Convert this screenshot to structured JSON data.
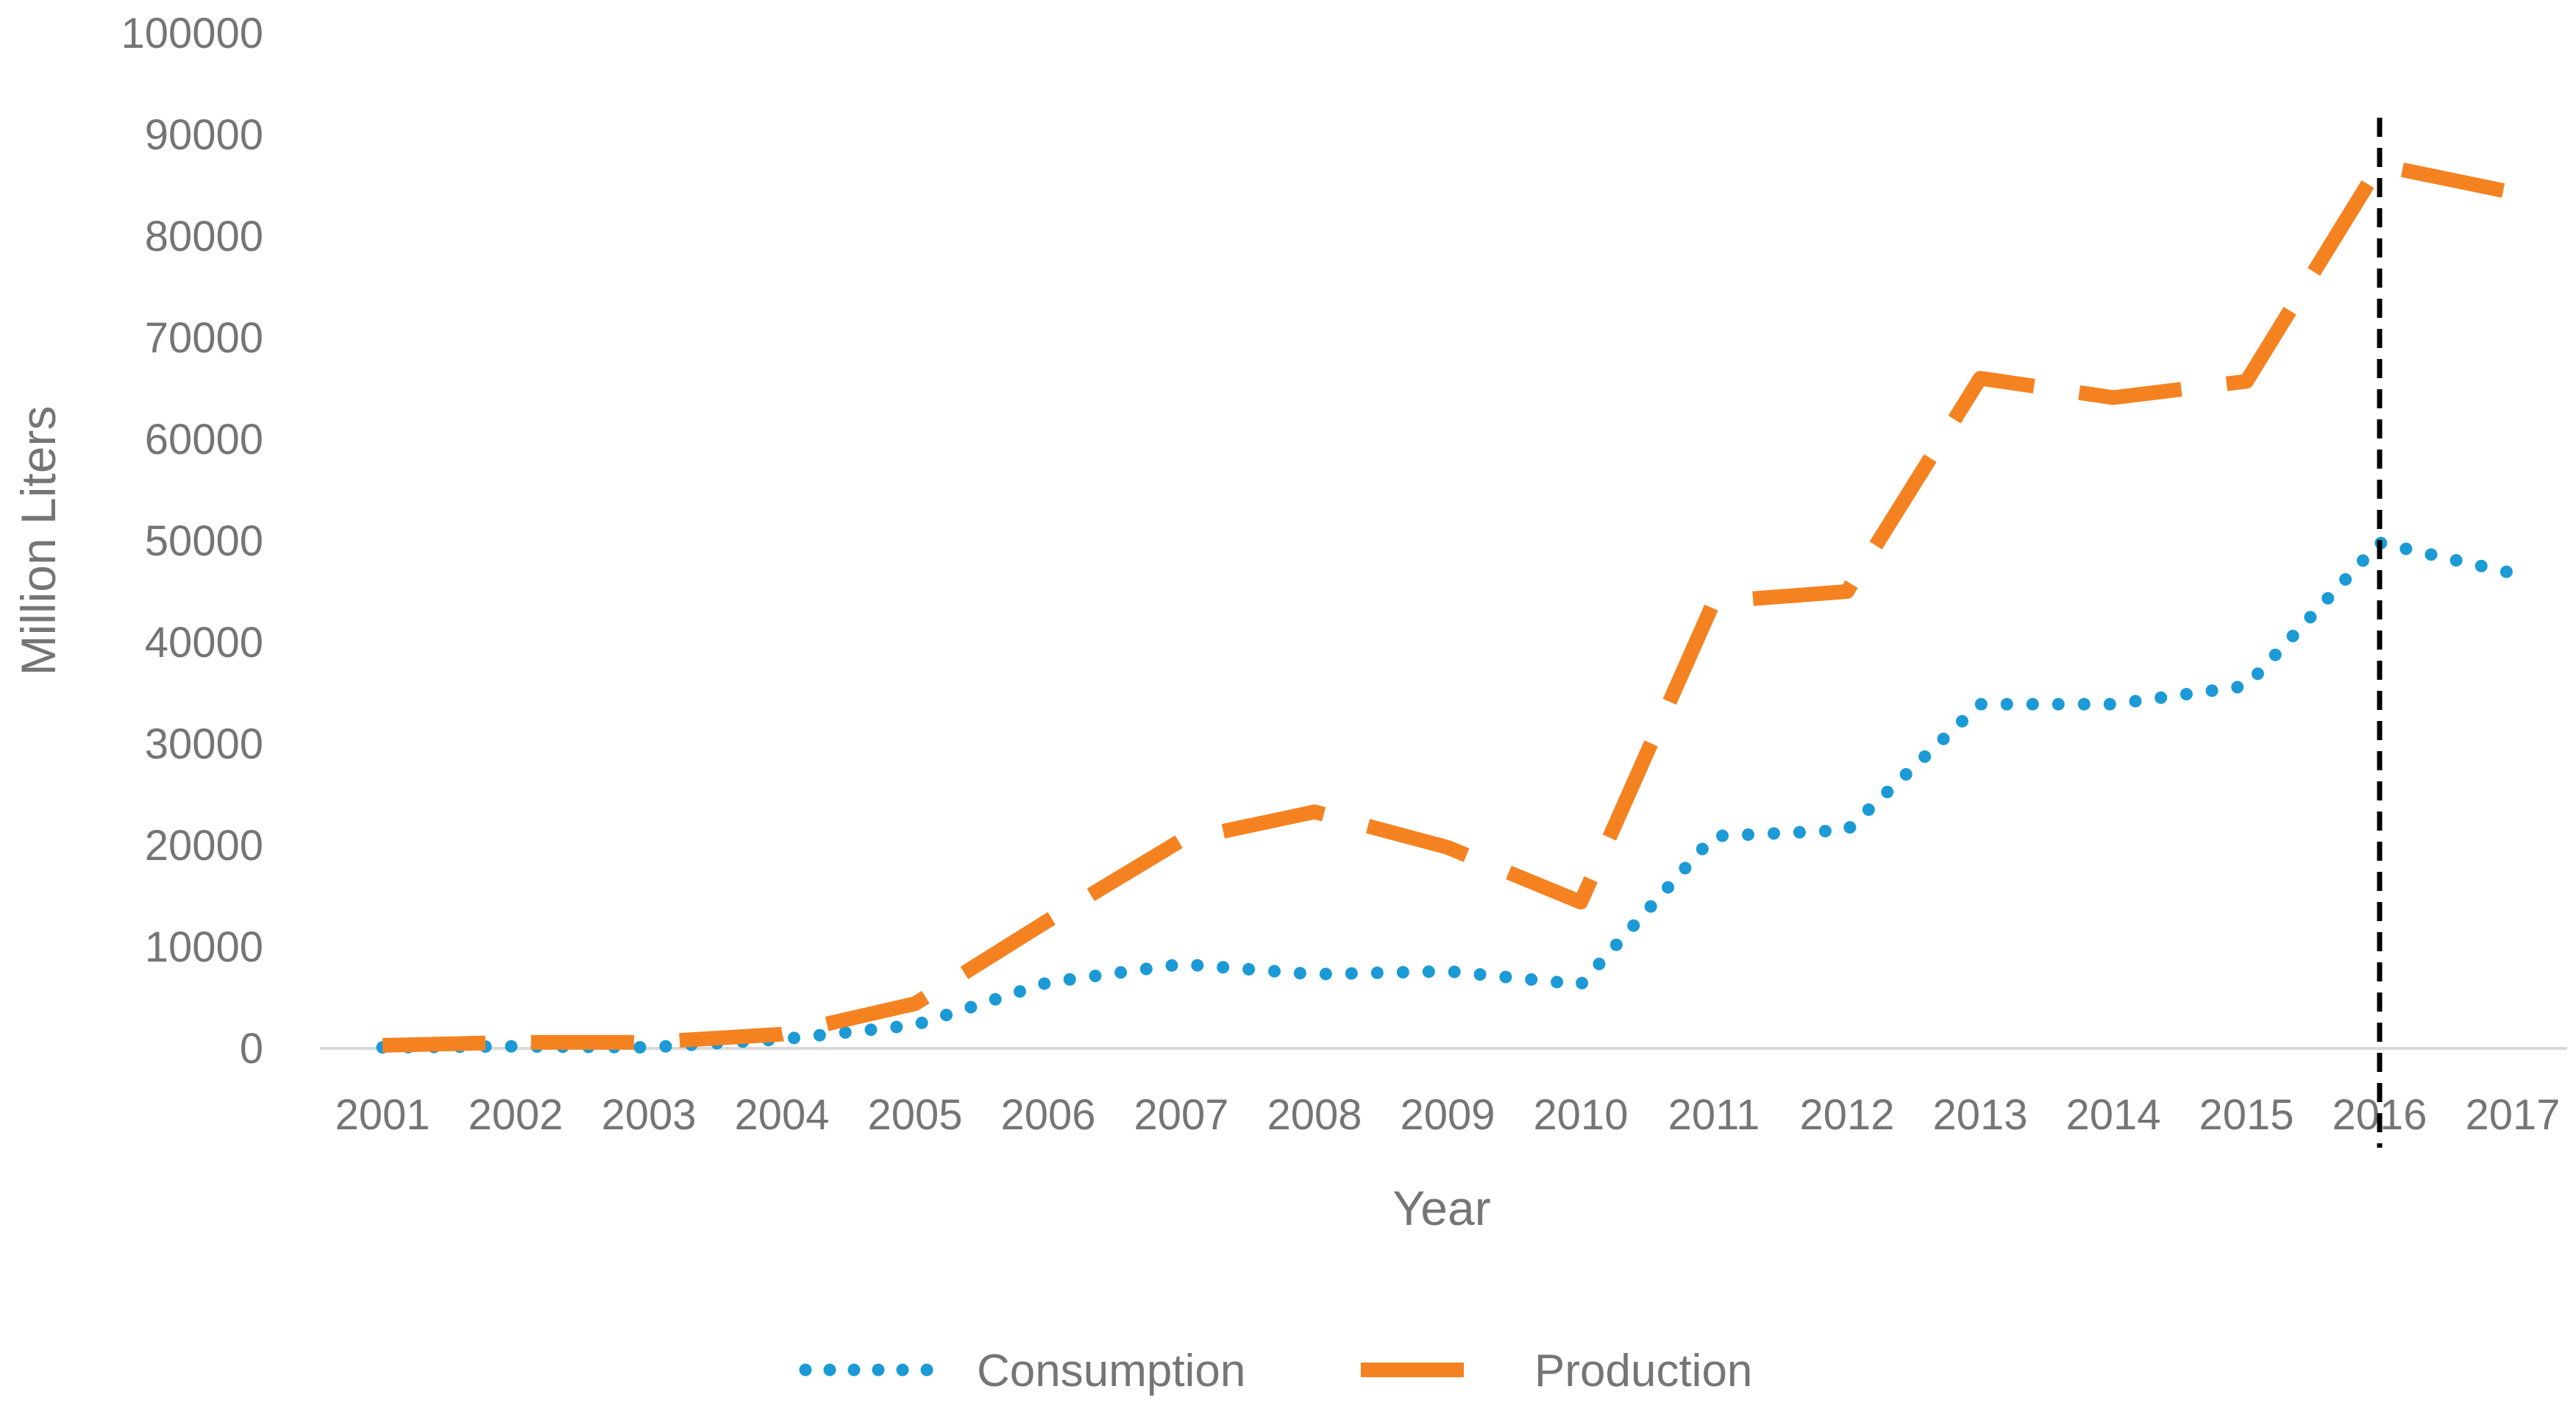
{
  "chart_data": {
    "type": "line",
    "title": "",
    "xlabel": "Year",
    "ylabel": "Million Liters",
    "ylim": [
      0,
      100000
    ],
    "yticks": [
      0,
      10000,
      20000,
      30000,
      40000,
      50000,
      60000,
      70000,
      80000,
      90000,
      100000
    ],
    "gridlines": false,
    "legend_position": "bottom",
    "categories": [
      "2001",
      "2002",
      "2003",
      "2004",
      "2005",
      "2006",
      "2007",
      "2008",
      "2009",
      "2010",
      "2011",
      "2012",
      "2013",
      "2014",
      "2015",
      "2016",
      "2017"
    ],
    "series": [
      {
        "name": "Consumption",
        "style": "dotted",
        "color": "#1B9AD6",
        "values": [
          100,
          200,
          100,
          900,
          2300,
          6500,
          8300,
          7300,
          7600,
          6300,
          20900,
          21500,
          33900,
          33900,
          35700,
          49800,
          46800
        ]
      },
      {
        "name": "Production",
        "style": "dashed",
        "color": "#F58220",
        "values": [
          300,
          600,
          600,
          1400,
          4400,
          12600,
          20500,
          23300,
          19800,
          14400,
          44000,
          45000,
          66000,
          64100,
          65700,
          87000,
          84300
        ]
      }
    ],
    "annotations": [
      {
        "type": "vertical-line",
        "at": "2016",
        "style": "dashed",
        "color": "#000000"
      }
    ]
  }
}
